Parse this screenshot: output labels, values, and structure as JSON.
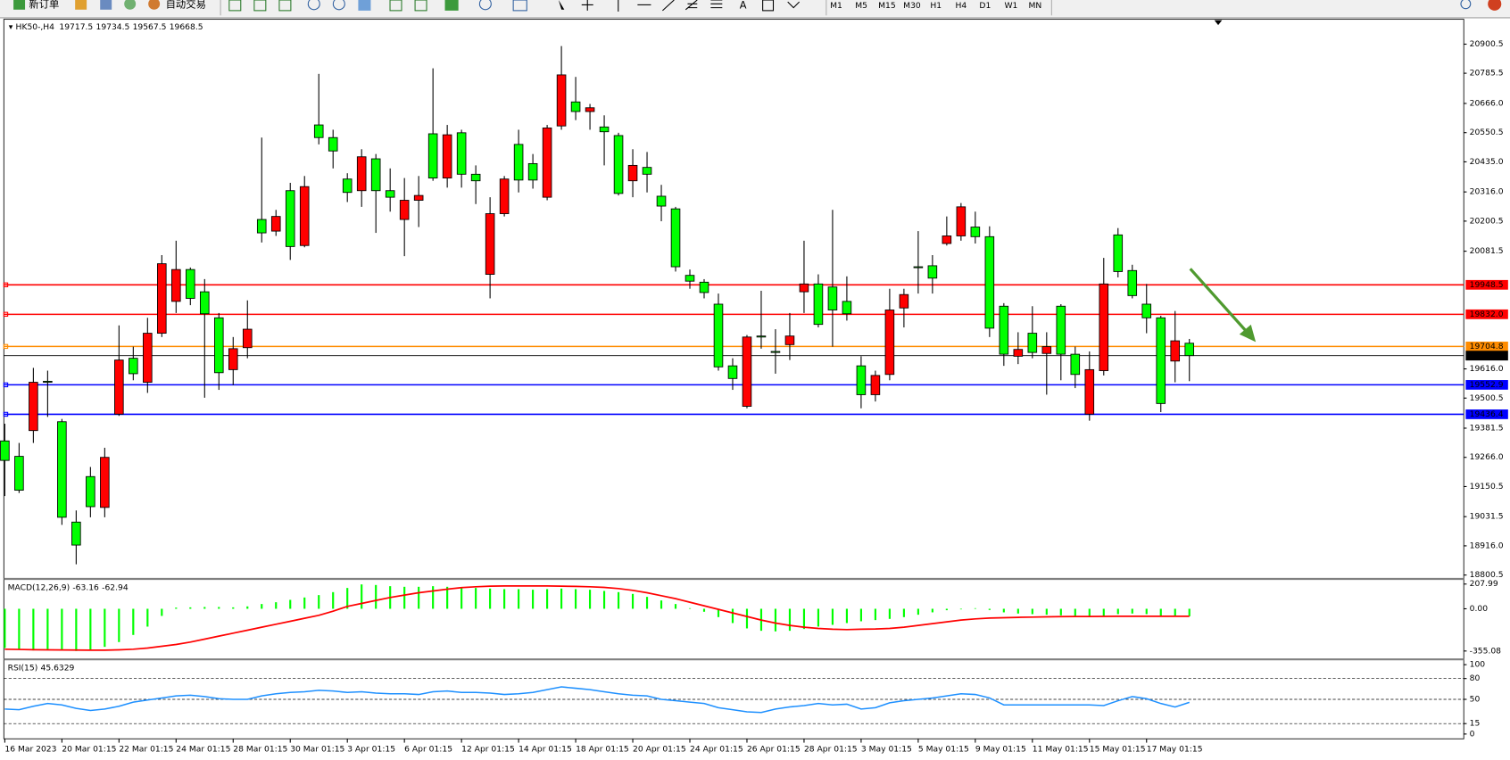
{
  "toolbar": {
    "buttons": [
      "新订单",
      "自动交易"
    ],
    "text_tool": "A",
    "timeframes": [
      "M1",
      "M5",
      "M15",
      "M30",
      "H1",
      "H4",
      "D1",
      "W1",
      "MN"
    ]
  },
  "chart_data": [
    {
      "type": "candlestick",
      "title": "HK50-,H4",
      "bull_color": "#ff0000",
      "bear_color": "#00ff00",
      "categories": [
        "16 Mar 2023",
        null,
        null,
        null,
        "20 Mar 01:15",
        null,
        null,
        null,
        "22 Mar 01:15",
        null,
        null,
        null,
        "24 Mar 01:15",
        null,
        null,
        null,
        "28 Mar 01:15",
        null,
        null,
        null,
        "30 Mar 01:15",
        null,
        null,
        null,
        "3 Apr 01:15",
        null,
        null,
        null,
        "6 Apr 01:15",
        null,
        null,
        null,
        "12 Apr 01:15",
        null,
        null,
        null,
        "14 Apr 01:15",
        null,
        null,
        null,
        "18 Apr 01:15",
        null,
        null,
        null,
        "20 Apr 01:15",
        null,
        null,
        null,
        "24 Apr 01:15",
        null,
        null,
        null,
        "26 Apr 01:15",
        null,
        null,
        null,
        "28 Apr 01:15",
        null,
        null,
        null,
        "3 May 01:15",
        null,
        null,
        null,
        "5 May 01:15",
        null,
        null,
        null,
        "9 May 01:15",
        null,
        null,
        null,
        "11 May 01:15",
        null,
        null,
        null,
        "15 May 01:15",
        null,
        null,
        null,
        "17 May 01:15",
        null,
        null,
        null
      ],
      "open": [
        19331,
        19270,
        19372,
        19567,
        19407,
        19010,
        19190,
        19068,
        19437,
        19658,
        19563,
        19757,
        19883,
        20009,
        19921,
        19818,
        19613,
        19700,
        20207,
        20161,
        20321,
        20104,
        20581,
        20531,
        20367,
        20321,
        20447,
        20321,
        20207,
        20283,
        20546,
        20371,
        20550,
        20386,
        19990,
        20230,
        20504,
        20428,
        20295,
        20577,
        20672,
        20634,
        20573,
        20539,
        20360,
        20413,
        20299,
        20249,
        19986,
        19959,
        19872,
        19628,
        19468,
        19746,
        19685,
        19712,
        19921,
        19952,
        19940,
        19883,
        19628,
        19514,
        19594,
        19857,
        20020,
        20024,
        20112,
        20142,
        20177,
        20139,
        19864,
        19666,
        19757,
        19677,
        19864,
        19674,
        19437,
        19609,
        20146,
        20005,
        19872,
        19818,
        19647,
        19717.5
      ],
      "high": [
        19399,
        19323,
        19620,
        19609,
        19418,
        19056,
        19228,
        19304,
        19788,
        19704,
        19818,
        20066,
        20123,
        20017,
        19971,
        19837,
        19742,
        19887,
        20531,
        20245,
        20352,
        20379,
        20783,
        20562,
        20390,
        20485,
        20466,
        20409,
        20371,
        20379,
        20805,
        20581,
        20562,
        20421,
        20295,
        20379,
        20562,
        20466,
        20581,
        20893,
        20771,
        20664,
        20619,
        20550,
        20485,
        20474,
        20344,
        20257,
        20009,
        19971,
        19914,
        19658,
        19750,
        19925,
        19773,
        19837,
        20123,
        19990,
        20245,
        19982,
        19666,
        19609,
        19933,
        19933,
        20161,
        20066,
        20219,
        20272,
        20238,
        20180,
        19876,
        19761,
        19864,
        19761,
        19872,
        19704,
        19685,
        20055,
        20173,
        20028,
        19952,
        19826,
        19845,
        19734.5
      ],
      "low": [
        19113,
        19125,
        19323,
        19426,
        18999,
        18843,
        19029,
        19029,
        19430,
        19571,
        19521,
        19742,
        19837,
        19868,
        19502,
        19533,
        19552,
        19658,
        20116,
        20142,
        20047,
        20097,
        20504,
        20409,
        20276,
        20257,
        20154,
        20238,
        20062,
        20177,
        20360,
        20333,
        20333,
        20268,
        19895,
        20219,
        20314,
        20329,
        20283,
        20562,
        20600,
        20562,
        20421,
        20302,
        20295,
        20314,
        20200,
        20001,
        19933,
        19895,
        19609,
        19533,
        19460,
        19696,
        19597,
        19651,
        19837,
        19780,
        19704,
        19807,
        19460,
        19487,
        19571,
        19780,
        19914,
        19914,
        20104,
        20123,
        20112,
        19742,
        19628,
        19635,
        19658,
        19514,
        19571,
        19540,
        19411,
        19590,
        19978,
        19895,
        19757,
        19445,
        19563,
        19567.5
      ],
      "close": [
        19254,
        19136,
        19563,
        19565,
        19029,
        18919,
        19071,
        19266,
        19651,
        19597,
        19757,
        20032,
        20009,
        19895,
        19834,
        19601,
        19696,
        19773,
        20154,
        20219,
        20100,
        20337,
        20531,
        20478,
        20314,
        20455,
        20321,
        20295,
        20283,
        20302,
        20371,
        20542,
        20386,
        20360,
        20230,
        20367,
        20363,
        20363,
        20569,
        20779,
        20634,
        20649,
        20554,
        20310,
        20421,
        20386,
        20260,
        20020,
        19963,
        19918,
        19624,
        19578,
        19742,
        19742,
        19681,
        19746,
        19952,
        19792,
        19849,
        19834,
        19514,
        19590,
        19849,
        19910,
        20017,
        19975,
        20142,
        20257,
        20139,
        19777,
        19674,
        19693,
        19681,
        19704,
        19674,
        19594,
        19613,
        19952,
        20001,
        19906,
        19818,
        19479,
        19727,
        19668.5
      ],
      "ylim": [
        18789,
        20999
      ],
      "yticks": [
        20900.5,
        20785.5,
        {
          "value": 20666,
          "label": "20666.0"
        },
        20550.5,
        {
          "value": 20435,
          "label": "20435.0"
        },
        {
          "value": 20316,
          "label": "20316.0"
        },
        20200.5,
        20081.5,
        {
          "value": 19616,
          "label": "19616.0"
        },
        19500.5,
        19381.5,
        {
          "value": 19266,
          "label": "19266.0"
        },
        19150.5,
        19031.5,
        {
          "value": 18916,
          "label": "18916.0"
        },
        18800.5
      ],
      "levels": [
        {
          "value": 19948.5,
          "color": "#ff0000"
        },
        {
          "value": 19832,
          "label": "19832.0",
          "color": "#ff0000"
        },
        {
          "value": 19704.8,
          "color": "#ff8c00"
        },
        {
          "value": 19552.9,
          "color": "#0000ff"
        },
        {
          "value": 19436.4,
          "color": "#0000ff"
        }
      ],
      "current_price": 19668.5
    },
    {
      "type": "macd",
      "title": "MACD(12,26,9)",
      "color": "#00ff00",
      "signal_color": "#ff0000",
      "values": [
        -330,
        -345,
        -350,
        -340,
        -345,
        -355,
        -350,
        -320,
        -280,
        -220,
        -150,
        -60,
        10,
        12,
        15,
        15,
        12,
        20,
        40,
        55,
        75,
        95,
        115,
        140,
        175,
        205,
        200,
        190,
        185,
        185,
        190,
        185,
        180,
        175,
        170,
        165,
        165,
        160,
        165,
        170,
        165,
        160,
        150,
        140,
        125,
        100,
        70,
        40,
        5,
        -25,
        -70,
        -120,
        -165,
        -185,
        -190,
        -185,
        -170,
        -150,
        -135,
        -120,
        -105,
        -95,
        -85,
        -70,
        -50,
        -30,
        -12,
        -5,
        5,
        -10,
        -30,
        -40,
        -45,
        -50,
        -55,
        -60,
        -70,
        -65,
        -45,
        -40,
        -45,
        -60,
        -60,
        -63.16
      ],
      "signal": [
        -340,
        -342,
        -344,
        -345,
        -346,
        -347,
        -348,
        -348,
        -345,
        -340,
        -330,
        -315,
        -300,
        -280,
        -255,
        -230,
        -205,
        -180,
        -155,
        -130,
        -105,
        -80,
        -55,
        -20,
        20,
        45,
        70,
        95,
        115,
        135,
        150,
        165,
        178,
        185,
        190,
        192,
        192,
        192,
        192,
        190,
        188,
        185,
        180,
        170,
        155,
        135,
        110,
        85,
        55,
        25,
        -5,
        -35,
        -65,
        -95,
        -120,
        -140,
        -155,
        -165,
        -172,
        -175,
        -172,
        -170,
        -165,
        -155,
        -140,
        -125,
        -110,
        -95,
        -85,
        -78,
        -75,
        -72,
        -70,
        -68,
        -66,
        -65,
        -65,
        -64,
        -63,
        -63,
        -63,
        -63,
        -63,
        -62.94
      ],
      "ylim": [
        -413,
        235
      ],
      "yticks": [
        207.99,
        {
          "value": 0,
          "label": "0.00"
        },
        -355.08
      ]
    },
    {
      "type": "line",
      "title": "RSI(15)",
      "color": "#1e90ff",
      "values": [
        36,
        35,
        40,
        44,
        42,
        37,
        34,
        36,
        40,
        46,
        49,
        52,
        55,
        56,
        54,
        51,
        50,
        50,
        55,
        58,
        60,
        61,
        63,
        62,
        60,
        61,
        59,
        58,
        58,
        57,
        61,
        62,
        60,
        60,
        59,
        57,
        58,
        60,
        64,
        68,
        66,
        64,
        61,
        58,
        56,
        55,
        50,
        48,
        46,
        44,
        38,
        35,
        32,
        31,
        36,
        39,
        41,
        44,
        42,
        43,
        36,
        38,
        45,
        48,
        50,
        52,
        55,
        58,
        57,
        52,
        42,
        42,
        42,
        42,
        42,
        42,
        42,
        41,
        48,
        54,
        51,
        44,
        39,
        45.6329
      ],
      "ylim": [
        -6.9,
        105.6
      ],
      "yticks": [
        100,
        80,
        50,
        15,
        0
      ],
      "levels": [
        80,
        50,
        15
      ]
    }
  ]
}
